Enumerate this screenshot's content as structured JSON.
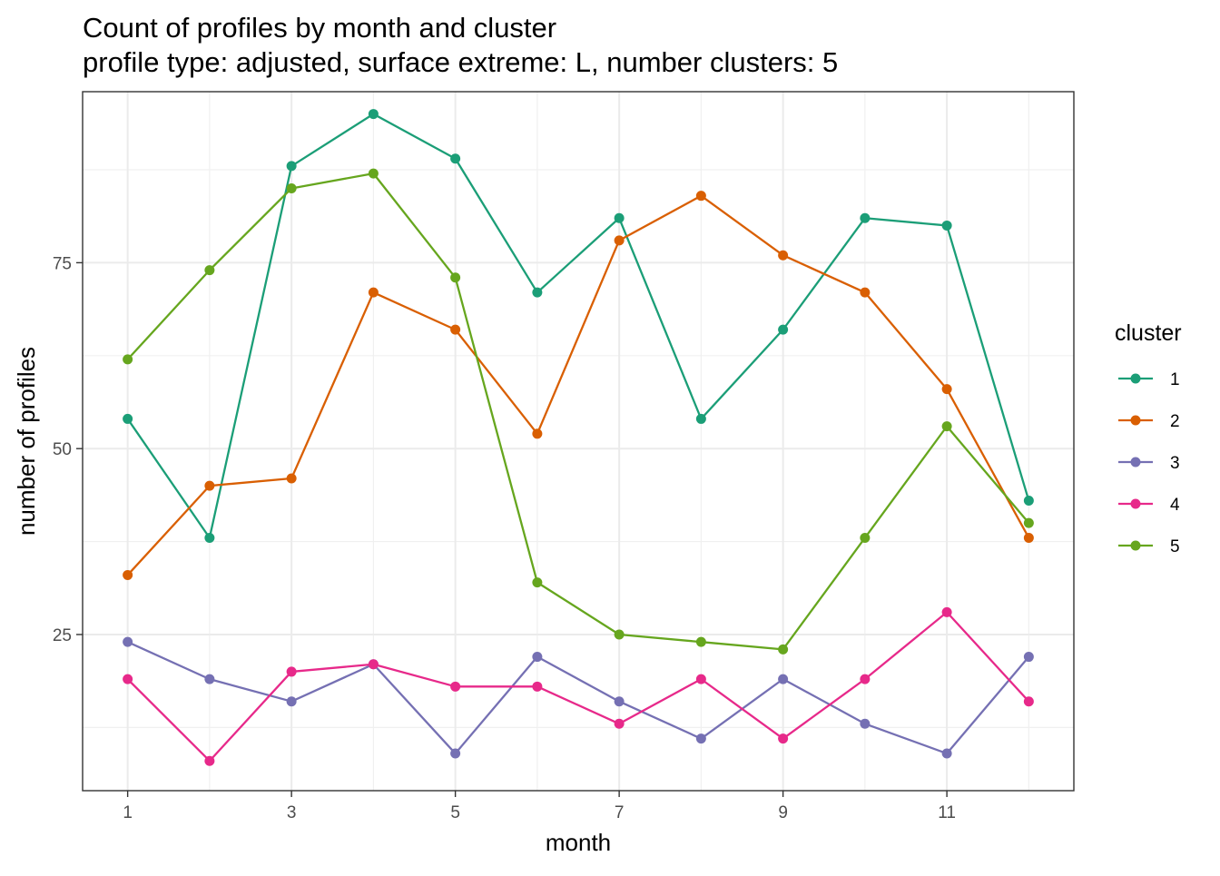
{
  "chart_data": {
    "type": "line",
    "title": "Count of profiles by month and cluster",
    "subtitle": "profile type: adjusted, surface extreme: L, number clusters: 5",
    "xlabel": "month",
    "ylabel": "number of profiles",
    "x": [
      1,
      2,
      3,
      4,
      5,
      6,
      7,
      8,
      9,
      10,
      11,
      12
    ],
    "x_ticks": [
      1,
      3,
      5,
      7,
      9,
      11
    ],
    "y_ticks": [
      25,
      50,
      75
    ],
    "xlim": [
      0.45,
      12.55
    ],
    "ylim": [
      4,
      98
    ],
    "grid": true,
    "legend": {
      "title": "cluster",
      "position": "right"
    },
    "series": [
      {
        "name": "1",
        "color": "#1b9e77",
        "values": [
          54,
          38,
          88,
          95,
          89,
          71,
          81,
          54,
          66,
          81,
          80,
          43
        ]
      },
      {
        "name": "2",
        "color": "#d95f02",
        "values": [
          33,
          45,
          46,
          71,
          66,
          52,
          78,
          84,
          76,
          71,
          58,
          38
        ]
      },
      {
        "name": "3",
        "color": "#7570b3",
        "values": [
          24,
          19,
          16,
          21,
          9,
          22,
          16,
          11,
          19,
          13,
          9,
          22
        ]
      },
      {
        "name": "4",
        "color": "#e7298a",
        "values": [
          19,
          8,
          20,
          21,
          18,
          18,
          13,
          19,
          11,
          19,
          28,
          16
        ]
      },
      {
        "name": "5",
        "color": "#66a61e",
        "values": [
          62,
          74,
          85,
          87,
          73,
          32,
          25,
          24,
          23,
          38,
          53,
          40
        ]
      }
    ]
  }
}
